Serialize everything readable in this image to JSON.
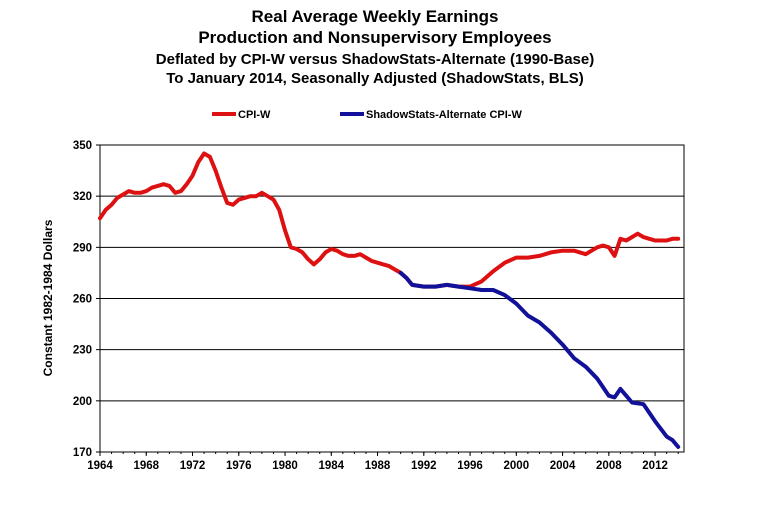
{
  "chart_data": {
    "type": "line",
    "title_lines": [
      "Real Average Weekly Earnings",
      "Production and Nonsupervisory Employees",
      "Deflated by CPI-W versus ShadowStats-Alternate (1990-Base)",
      "To January 2014, Seasonally Adjusted (ShadowStats, BLS)"
    ],
    "xlabel": "",
    "ylabel": "Constant 1982-1984 Dollars",
    "xlim": [
      1964,
      2014.5
    ],
    "ylim": [
      170,
      350
    ],
    "x_ticks": [
      "1964",
      "1968",
      "1972",
      "1976",
      "1980",
      "1984",
      "1988",
      "1992",
      "1996",
      "2000",
      "2004",
      "2008",
      "2012"
    ],
    "y_ticks": [
      "170",
      "200",
      "230",
      "260",
      "290",
      "320",
      "350"
    ],
    "grid": "horizontal",
    "legend_position": "top",
    "series": [
      {
        "name": "CPI-W",
        "color": "#dd1111",
        "points": [
          [
            1964.0,
            307
          ],
          [
            1964.5,
            312
          ],
          [
            1965.0,
            315
          ],
          [
            1965.5,
            319
          ],
          [
            1966.0,
            321
          ],
          [
            1966.5,
            323
          ],
          [
            1967.0,
            322
          ],
          [
            1967.5,
            322
          ],
          [
            1968.0,
            323
          ],
          [
            1968.5,
            325
          ],
          [
            1969.0,
            326
          ],
          [
            1969.5,
            327
          ],
          [
            1970.0,
            326
          ],
          [
            1970.5,
            322
          ],
          [
            1971.0,
            323
          ],
          [
            1971.5,
            327
          ],
          [
            1972.0,
            332
          ],
          [
            1972.5,
            340
          ],
          [
            1973.0,
            345
          ],
          [
            1973.5,
            343
          ],
          [
            1974.0,
            335
          ],
          [
            1974.5,
            325
          ],
          [
            1975.0,
            316
          ],
          [
            1975.5,
            315
          ],
          [
            1976.0,
            318
          ],
          [
            1976.5,
            319
          ],
          [
            1977.0,
            320
          ],
          [
            1977.5,
            320
          ],
          [
            1978.0,
            322
          ],
          [
            1978.5,
            320
          ],
          [
            1979.0,
            318
          ],
          [
            1979.5,
            312
          ],
          [
            1980.0,
            300
          ],
          [
            1980.5,
            290
          ],
          [
            1981.0,
            289
          ],
          [
            1981.5,
            287
          ],
          [
            1982.0,
            283
          ],
          [
            1982.5,
            280
          ],
          [
            1983.0,
            283
          ],
          [
            1983.5,
            287
          ],
          [
            1984.0,
            289
          ],
          [
            1984.5,
            288
          ],
          [
            1985.0,
            286
          ],
          [
            1985.5,
            285
          ],
          [
            1986.0,
            285
          ],
          [
            1986.5,
            286
          ],
          [
            1987.0,
            284
          ],
          [
            1987.5,
            282
          ],
          [
            1988.0,
            281
          ],
          [
            1988.5,
            280
          ],
          [
            1989.0,
            279
          ],
          [
            1989.5,
            277
          ],
          [
            1990.0,
            275
          ],
          [
            1990.5,
            272
          ],
          [
            1991.0,
            268
          ],
          [
            1992.0,
            267
          ],
          [
            1993.0,
            267
          ],
          [
            1994.0,
            268
          ],
          [
            1995.0,
            267
          ],
          [
            1996.0,
            267
          ],
          [
            1997.0,
            270
          ],
          [
            1998.0,
            276
          ],
          [
            1999.0,
            281
          ],
          [
            2000.0,
            284
          ],
          [
            2001.0,
            284
          ],
          [
            2002.0,
            285
          ],
          [
            2003.0,
            287
          ],
          [
            2004.0,
            288
          ],
          [
            2005.0,
            288
          ],
          [
            2006.0,
            286
          ],
          [
            2006.5,
            288
          ],
          [
            2007.0,
            290
          ],
          [
            2007.5,
            291
          ],
          [
            2008.0,
            290
          ],
          [
            2008.5,
            285
          ],
          [
            2009.0,
            295
          ],
          [
            2009.5,
            294
          ],
          [
            2010.0,
            296
          ],
          [
            2010.5,
            298
          ],
          [
            2011.0,
            296
          ],
          [
            2011.5,
            295
          ],
          [
            2012.0,
            294
          ],
          [
            2012.5,
            294
          ],
          [
            2013.0,
            294
          ],
          [
            2013.5,
            295
          ],
          [
            2014.0,
            295
          ]
        ]
      },
      {
        "name": "ShadowStats-Alternate CPI-W",
        "color": "#111199",
        "points": [
          [
            1990.0,
            275
          ],
          [
            1990.5,
            272
          ],
          [
            1991.0,
            268
          ],
          [
            1992.0,
            267
          ],
          [
            1993.0,
            267
          ],
          [
            1994.0,
            268
          ],
          [
            1995.0,
            267
          ],
          [
            1996.0,
            266
          ],
          [
            1997.0,
            265
          ],
          [
            1998.0,
            265
          ],
          [
            1999.0,
            262
          ],
          [
            2000.0,
            257
          ],
          [
            2001.0,
            250
          ],
          [
            2002.0,
            246
          ],
          [
            2003.0,
            240
          ],
          [
            2004.0,
            233
          ],
          [
            2005.0,
            225
          ],
          [
            2006.0,
            220
          ],
          [
            2007.0,
            213
          ],
          [
            2008.0,
            203
          ],
          [
            2008.5,
            202
          ],
          [
            2009.0,
            207
          ],
          [
            2009.5,
            203
          ],
          [
            2010.0,
            199
          ],
          [
            2011.0,
            198
          ],
          [
            2012.0,
            188
          ],
          [
            2013.0,
            179
          ],
          [
            2013.5,
            177
          ],
          [
            2014.0,
            173
          ]
        ]
      }
    ]
  }
}
